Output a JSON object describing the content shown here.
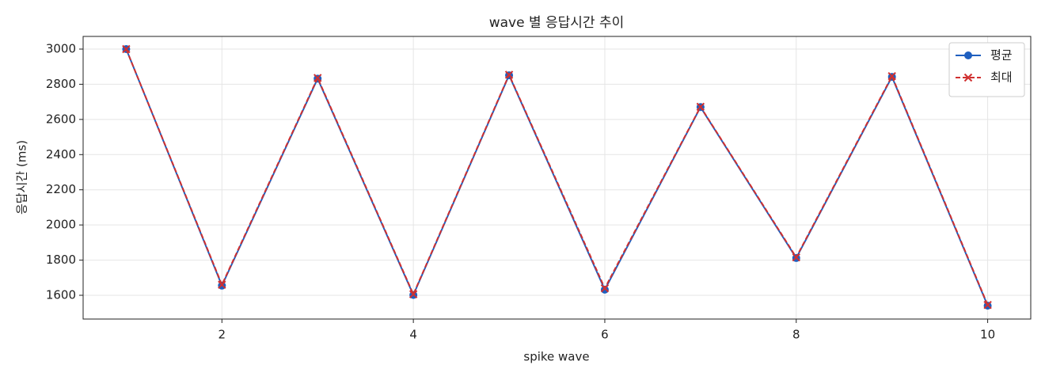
{
  "chart_data": {
    "type": "line",
    "title": "wave 별 응답시간 추이",
    "x_label": "spike wave",
    "y_label": "응답시간 (ms)",
    "x": [
      1,
      2,
      3,
      4,
      5,
      6,
      7,
      8,
      9,
      10
    ],
    "series": [
      {
        "name": "평균",
        "color": "#1f5fbf",
        "marker": "o",
        "dash": "solid",
        "values": [
          3000,
          1655,
          2832,
          1602,
          2851,
          1632,
          2670,
          1812,
          2842,
          1541
        ]
      },
      {
        "name": "최대",
        "color": "#d03030",
        "marker": "x",
        "dash": "dashed",
        "values": [
          3000,
          1660,
          2836,
          1606,
          2854,
          1640,
          2672,
          1816,
          2846,
          1545
        ]
      }
    ],
    "xlim": [
      0.55,
      10.45
    ],
    "xticks": [
      2,
      4,
      6,
      8,
      10
    ],
    "ylim": [
      1465,
      3072
    ],
    "yticks": [
      1600,
      1800,
      2000,
      2200,
      2400,
      2600,
      2800,
      3000
    ],
    "grid": true,
    "legend": "upper right"
  }
}
